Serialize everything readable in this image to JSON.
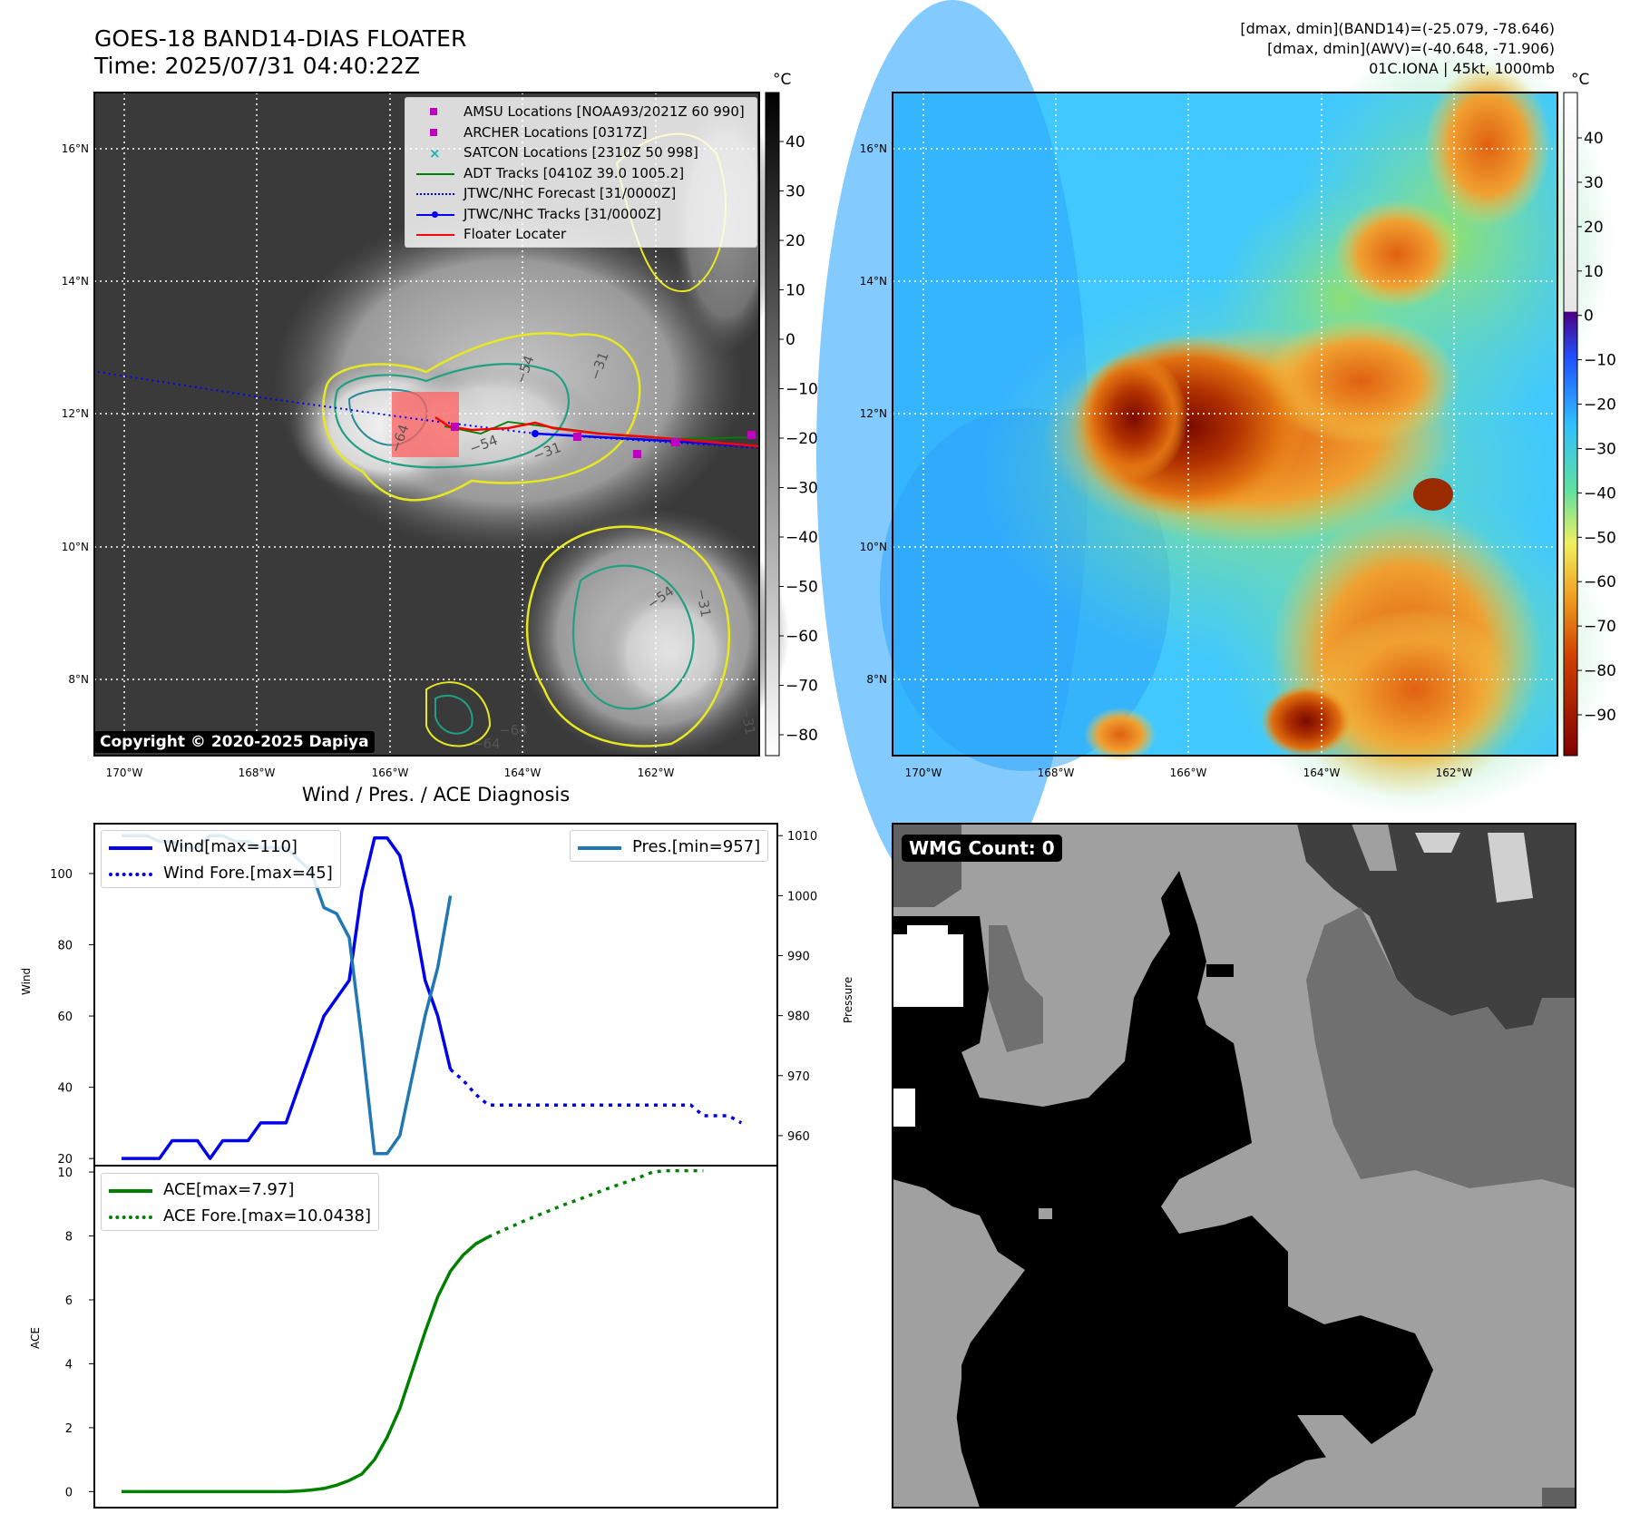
{
  "header": {
    "title_line1": "GOES-18 BAND14-DIAS FLOATER",
    "title_line2": "Time: 2025/07/31 04:40:22Z",
    "diag_line1": "[dmax, dmin](BAND14)=(-25.079, -78.646)",
    "diag_line2": "[dmax, dmin](AWV)=(-40.648, -71.906)",
    "diag_line3": "01C.IONA | 45kt, 1000mb"
  },
  "map_panel": {
    "copyright": "Copyright © 2020-2025 Dapiya",
    "lon_ticks": [
      "170°W",
      "168°W",
      "166°W",
      "164°W",
      "162°W"
    ],
    "lat_ticks": [
      "16°N",
      "14°N",
      "12°N",
      "10°N",
      "8°N"
    ],
    "colorbar_unit": "°C",
    "colorbar_ticks": [
      "40",
      "30",
      "20",
      "10",
      "0",
      "−10",
      "−20",
      "−30",
      "−40",
      "−50",
      "−60",
      "−70",
      "−80"
    ],
    "contour_labels": [
      "−64",
      "−54",
      "−31",
      "−54",
      "−31",
      "−64",
      "−31",
      "−54",
      "−64",
      "−31"
    ],
    "legend": [
      {
        "label": "AMSU Locations [NOAA93/2021Z 60 990]",
        "color": "#c000c0",
        "style": "square"
      },
      {
        "label": "ARCHER Locations [0317Z]",
        "color": "#c000c0",
        "style": "square"
      },
      {
        "label": "SATCON Locations [2310Z 50 998]",
        "color": "#20b0b0",
        "style": "x"
      },
      {
        "label": "ADT Tracks [0410Z 39.0 1005.2]",
        "color": "#008000",
        "style": "line"
      },
      {
        "label": "JTWC/NHC Forecast [31/0000Z]",
        "color": "#0000ff",
        "style": "dotted"
      },
      {
        "label": "JTWC/NHC Tracks [31/0000Z]",
        "color": "#0000ff",
        "style": "line-dot"
      },
      {
        "label": "Floater Locater",
        "color": "#ff0000",
        "style": "line"
      }
    ]
  },
  "awv_panel": {
    "lon_ticks": [
      "170°W",
      "168°W",
      "166°W",
      "164°W",
      "162°W"
    ],
    "lat_ticks": [
      "16°N",
      "14°N",
      "12°N",
      "10°N",
      "8°N"
    ],
    "colorbar_unit": "°C",
    "colorbar_ticks": [
      "40",
      "30",
      "20",
      "10",
      "0",
      "−10",
      "−20",
      "−30",
      "−40",
      "−50",
      "−60",
      "−70",
      "−80",
      "−90"
    ]
  },
  "wmg_panel": {
    "label": "WMG Count: 0"
  },
  "chart_data": [
    {
      "type": "line",
      "title": "Wind / Pres. / ACE Diagnosis",
      "ylabel": "Wind",
      "ylabel_right": "Pressure",
      "ylim": [
        18,
        114
      ],
      "ylim_right": [
        955,
        1012
      ],
      "yticks": [
        "100",
        "80",
        "60",
        "40",
        "20"
      ],
      "yticks_right": [
        "1010",
        "1000",
        "990",
        "980",
        "970",
        "960"
      ],
      "x": [
        0,
        1,
        2,
        3,
        4,
        5,
        6,
        7,
        8,
        9,
        10,
        11,
        12,
        13,
        14,
        15,
        16,
        17,
        18,
        19,
        20,
        21,
        22,
        23,
        24,
        25,
        26,
        27,
        28,
        29,
        30,
        31,
        32,
        33,
        34,
        35,
        36,
        37,
        38,
        39,
        40,
        41,
        42,
        43,
        44,
        45,
        46,
        47,
        48,
        49,
        50
      ],
      "series": [
        {
          "name": "Wind[max=110]",
          "color": "#0000ee",
          "style": "solid",
          "values": [
            20,
            20,
            20,
            20,
            25,
            25,
            25,
            20,
            25,
            25,
            25,
            30,
            30,
            30,
            40,
            50,
            60,
            65,
            70,
            95,
            110,
            110,
            105,
            90,
            70,
            60,
            45,
            null,
            null,
            null,
            null,
            null,
            null,
            null,
            null,
            null,
            null,
            null,
            null,
            null,
            null,
            null,
            null,
            null,
            null,
            null,
            null,
            null,
            null,
            null,
            null
          ]
        },
        {
          "name": "Wind Fore.[max=45]",
          "color": "#0000ee",
          "style": "dotted",
          "values": [
            null,
            null,
            null,
            null,
            null,
            null,
            null,
            null,
            null,
            null,
            null,
            null,
            null,
            null,
            null,
            null,
            null,
            null,
            null,
            null,
            null,
            null,
            null,
            null,
            null,
            null,
            45,
            42,
            38,
            35,
            35,
            35,
            35,
            35,
            35,
            35,
            35,
            35,
            35,
            35,
            35,
            35,
            35,
            35,
            35,
            35,
            32,
            32,
            32,
            30,
            null
          ]
        },
        {
          "name": "Pres.[min=957]",
          "color": "#1f77b4",
          "style": "solid",
          "axis": "right",
          "values": [
            1010,
            1010,
            1010,
            1009,
            1009,
            1008,
            1008,
            1010,
            1010,
            1009,
            1009,
            1008,
            1008,
            1008,
            1006,
            1004,
            998,
            997,
            993,
            976,
            957,
            957,
            960,
            970,
            980,
            988,
            1000,
            null,
            null,
            null,
            null,
            null,
            null,
            null,
            null,
            null,
            null,
            null,
            null,
            null,
            null,
            null,
            null,
            null,
            null,
            null,
            null,
            null,
            null,
            null,
            null
          ]
        }
      ]
    },
    {
      "type": "line",
      "ylabel": "ACE",
      "ylim": [
        -0.5,
        10.2
      ],
      "yticks": [
        "10",
        "8",
        "6",
        "4",
        "2",
        "0"
      ],
      "x": [
        0,
        1,
        2,
        3,
        4,
        5,
        6,
        7,
        8,
        9,
        10,
        11,
        12,
        13,
        14,
        15,
        16,
        17,
        18,
        19,
        20,
        21,
        22,
        23,
        24,
        25,
        26,
        27,
        28,
        29,
        30,
        31,
        32,
        33,
        34,
        35,
        36,
        37,
        38,
        39,
        40,
        41,
        42,
        43,
        44,
        45,
        46,
        47,
        48,
        49,
        50
      ],
      "series": [
        {
          "name": "ACE[max=7.97]",
          "color": "#008000",
          "style": "solid",
          "values": [
            0,
            0,
            0,
            0,
            0,
            0,
            0,
            0,
            0,
            0,
            0,
            0,
            0,
            0,
            0.02,
            0.05,
            0.1,
            0.2,
            0.35,
            0.55,
            1.0,
            1.7,
            2.6,
            3.8,
            5.0,
            6.1,
            6.9,
            7.4,
            7.75,
            7.97,
            null,
            null,
            null,
            null,
            null,
            null,
            null,
            null,
            null,
            null,
            null,
            null,
            null,
            null,
            null,
            null,
            null,
            null,
            null,
            null,
            null
          ]
        },
        {
          "name": "ACE Fore.[max=10.0438]",
          "color": "#008000",
          "style": "dotted",
          "values": [
            null,
            null,
            null,
            null,
            null,
            null,
            null,
            null,
            null,
            null,
            null,
            null,
            null,
            null,
            null,
            null,
            null,
            null,
            null,
            null,
            null,
            null,
            null,
            null,
            null,
            null,
            null,
            null,
            null,
            7.97,
            8.15,
            8.32,
            8.5,
            8.66,
            8.82,
            8.98,
            9.12,
            9.27,
            9.42,
            9.56,
            9.7,
            9.84,
            10.0,
            10.04,
            10.04,
            10.04,
            10.04,
            null,
            null,
            null,
            null
          ]
        }
      ]
    }
  ]
}
